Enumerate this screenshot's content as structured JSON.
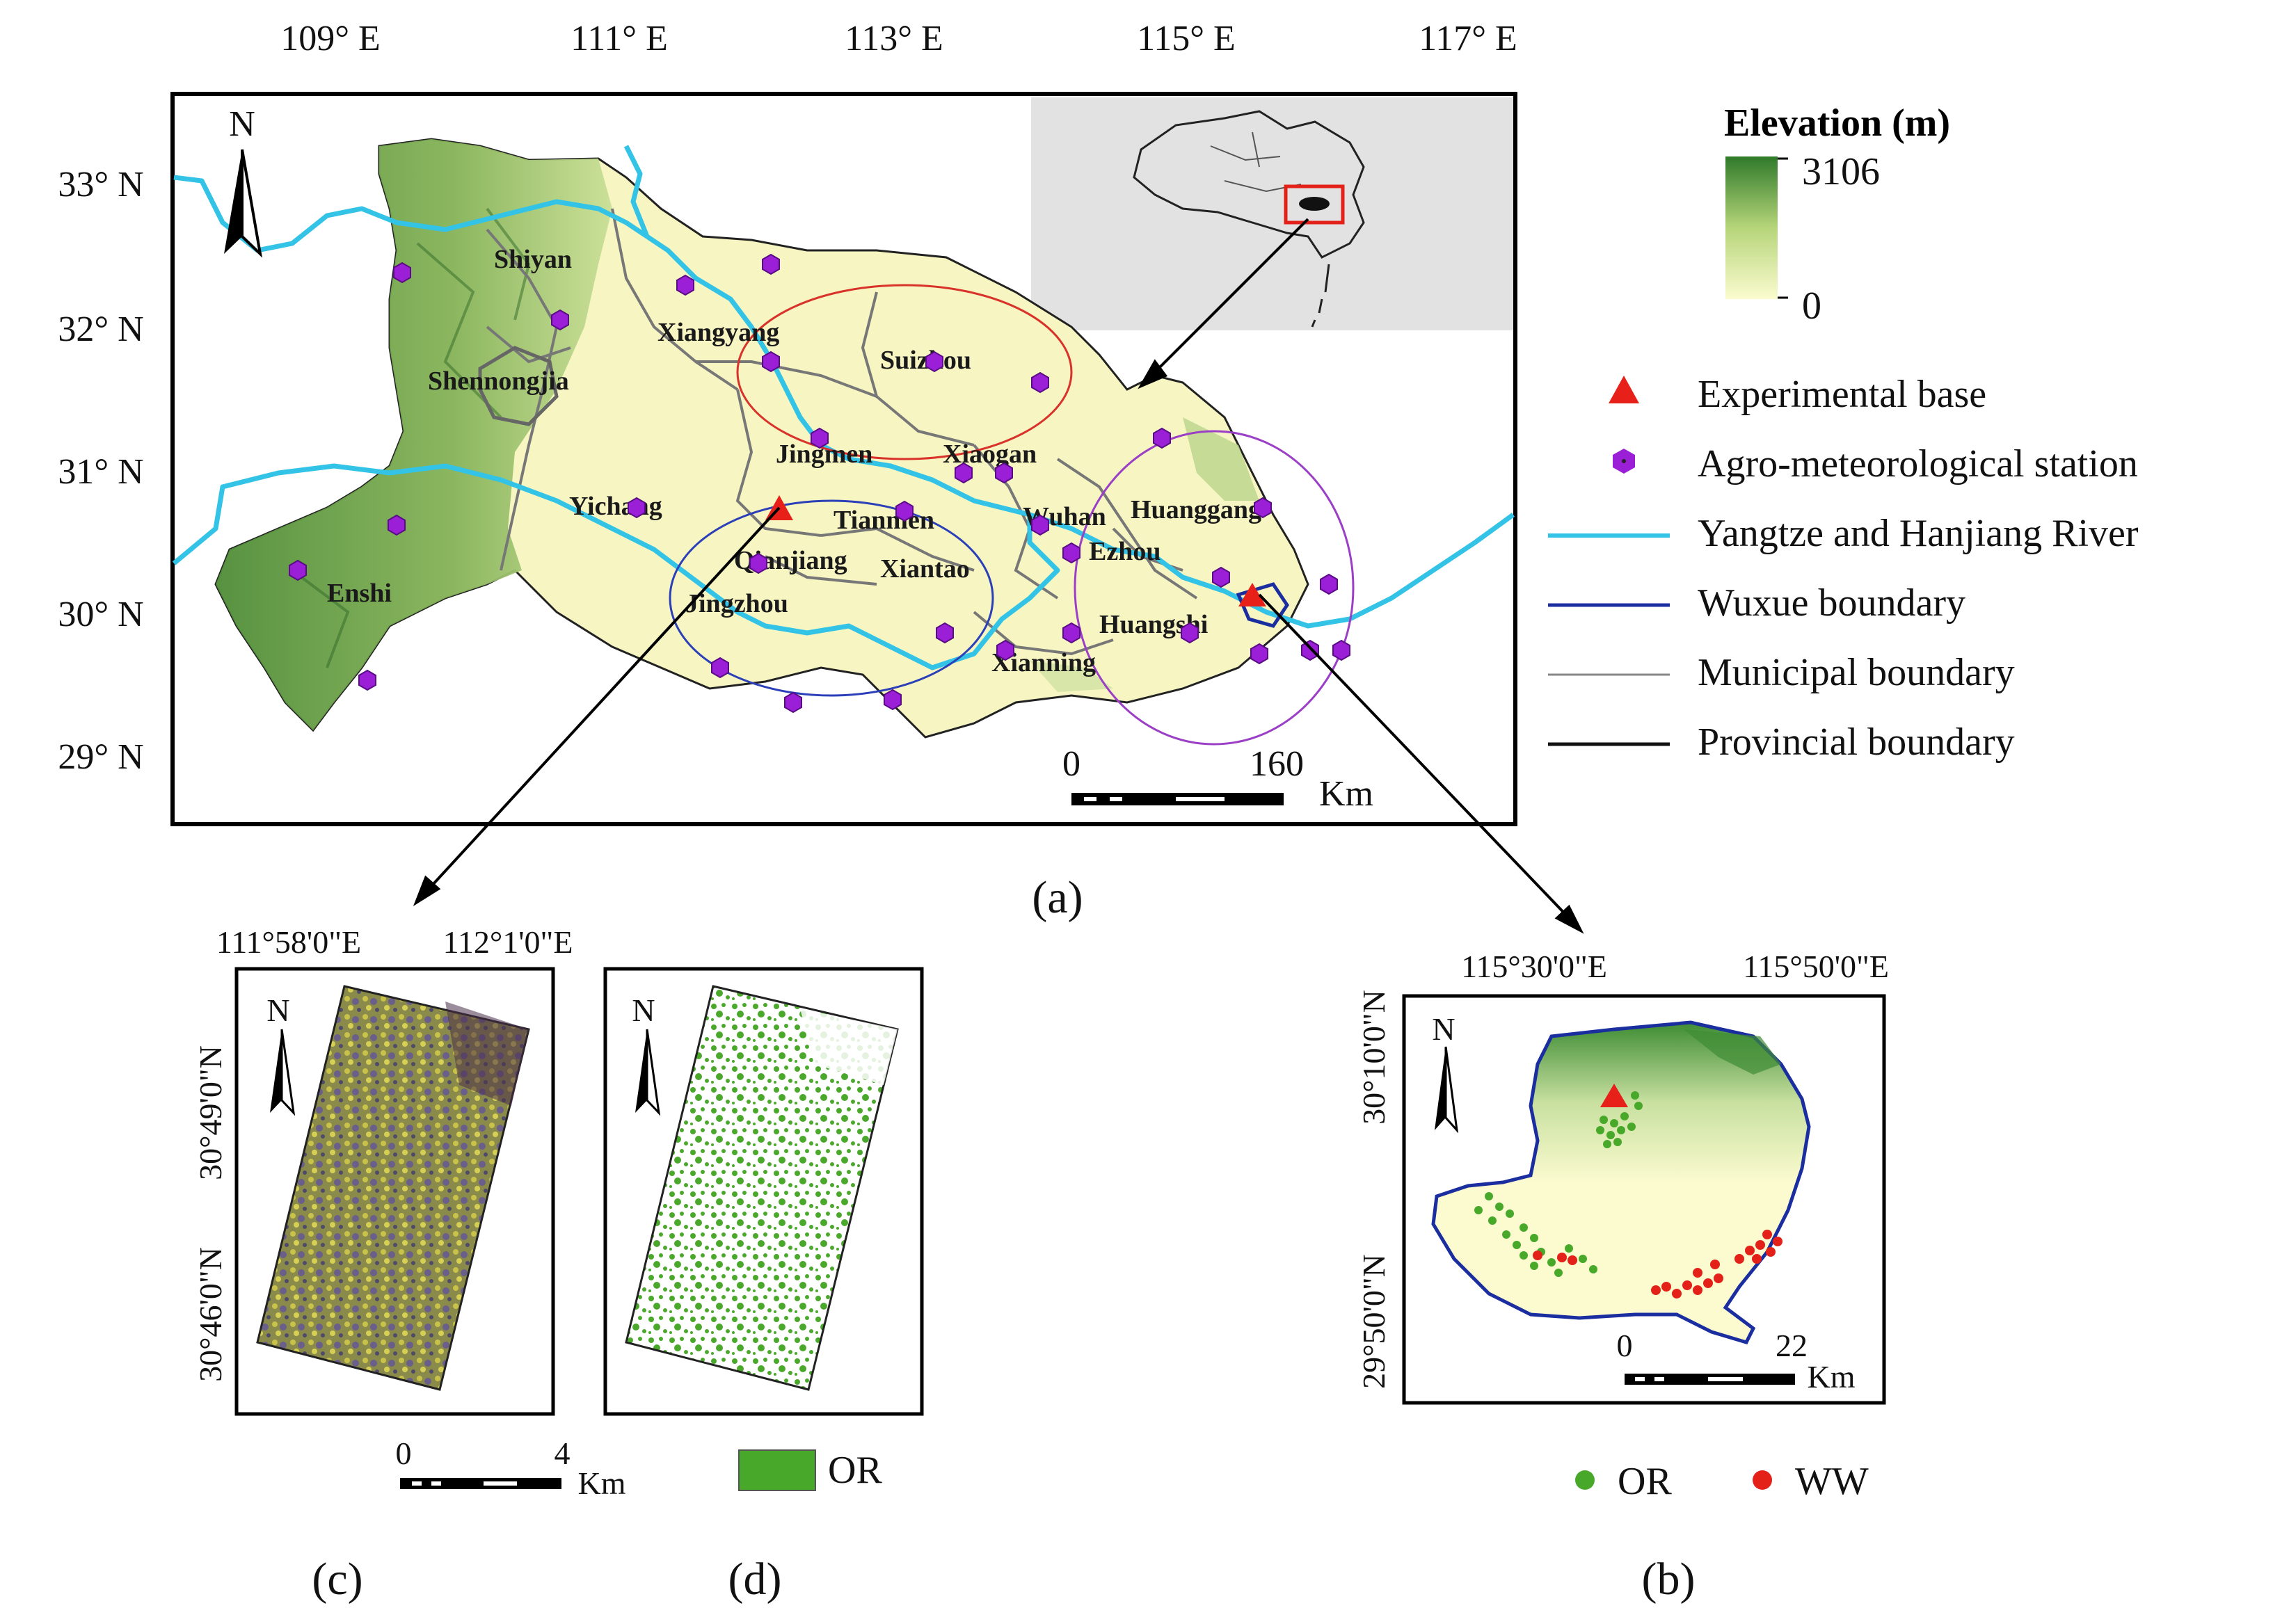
{
  "panels": {
    "a": "(a)",
    "b": "(b)",
    "c": "(c)",
    "d": "(d)"
  },
  "main_map": {
    "lon_ticks": [
      "109° E",
      "111° E",
      "113° E",
      "115° E",
      "117° E"
    ],
    "lat_ticks": [
      "33° N",
      "32° N",
      "31° N",
      "30° N",
      "29° N"
    ],
    "north": "N",
    "scale": {
      "start": "0",
      "end": "160",
      "unit": "Km"
    },
    "cities": [
      "Shiyan",
      "Xiangyang",
      "Suizhou",
      "Shennongjia",
      "Jingmen",
      "Xiaogan",
      "Yichang",
      "Tianmen",
      "Wuhan",
      "Huanggang",
      "Qianjiang",
      "Xiantao",
      "Ezhou",
      "Enshi",
      "Jingzhou",
      "Huangshi",
      "Xianning"
    ],
    "stations_count": 28,
    "experimental_bases_count": 2
  },
  "legend": {
    "elevation_title": "Elevation (m)",
    "elevation_max": "3106",
    "elevation_min": "0",
    "items": [
      "Experimental base",
      "Agro-meteorological station",
      "Yangtze and Hanjiang River",
      "Wuxue boundary",
      "Municipal boundary",
      "Provincial boundary"
    ]
  },
  "panel_b": {
    "lon_ticks": [
      "115°30'0\"E",
      "115°50'0\"E"
    ],
    "lat_ticks": [
      "30°10'0\"N",
      "29°50'0\"N"
    ],
    "north": "N",
    "scale": {
      "start": "0",
      "end": "22",
      "unit": "Km"
    },
    "legend": [
      "OR",
      "WW"
    ]
  },
  "panel_c": {
    "lon_ticks": [
      "111°58'0\"E",
      "112°1'0\"E"
    ],
    "lat_ticks": [
      "30°49'0\"N",
      "30°46'0\"N"
    ],
    "north": "N",
    "scale": {
      "start": "0",
      "end": "4",
      "unit": "Km"
    }
  },
  "panel_d": {
    "north": "N",
    "legend": "OR"
  },
  "colors": {
    "elevation_high": "#2f7a2a",
    "elevation_low": "#fbfbcf",
    "river": "#33c3e6",
    "wuxue_boundary": "#1b2ea0",
    "station": "#9b1fd6",
    "base": "#e8201a",
    "OR": "#48a82a",
    "WW": "#e32119",
    "inset_bg": "#e2e2e2"
  }
}
